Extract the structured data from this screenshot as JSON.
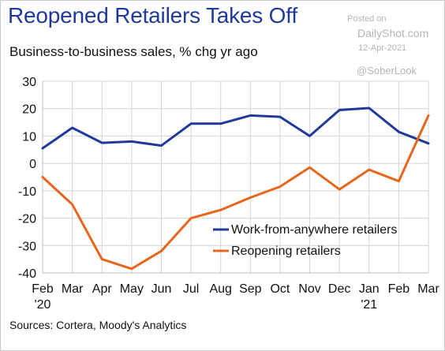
{
  "header": {
    "title": "Reopened Retailers Takes Off",
    "subtitle": "Business-to-business sales, % chg yr ago"
  },
  "watermark": {
    "posted": "Posted on",
    "site": "DailyShot.com",
    "date": "12-Apr-2021",
    "handle": "@SoberLook"
  },
  "footer": {
    "source": "Sources: Cortera, Moody's Analytics"
  },
  "chart_data": {
    "type": "line",
    "categories": [
      "Feb",
      "Mar",
      "Apr",
      "May",
      "Jun",
      "Jul",
      "Aug",
      "Sep",
      "Oct",
      "Nov",
      "Dec",
      "Jan",
      "Feb",
      "Mar"
    ],
    "year_labels": [
      {
        "index": 0,
        "label": "'20"
      },
      {
        "index": 11,
        "label": "'21"
      }
    ],
    "ylim": [
      -40,
      30
    ],
    "yticks": [
      30,
      20,
      10,
      0,
      -10,
      -20,
      -30,
      -40
    ],
    "grid": true,
    "legend_position": "lower-right",
    "series": [
      {
        "name": "Work-from-anywhere retailers",
        "color": "#1f3a9b",
        "values": [
          5.5,
          13,
          7.5,
          8,
          6.5,
          14.5,
          14.5,
          17.5,
          17,
          10,
          19.5,
          20.2,
          11.5,
          7.3
        ]
      },
      {
        "name": "Reopening retailers",
        "color": "#e8661c",
        "values": [
          -5,
          -15,
          -35,
          -38.5,
          -32,
          -20,
          -17,
          -12.5,
          -8.5,
          -1.5,
          -9.5,
          -2.3,
          -6.5,
          17.5
        ]
      }
    ]
  }
}
